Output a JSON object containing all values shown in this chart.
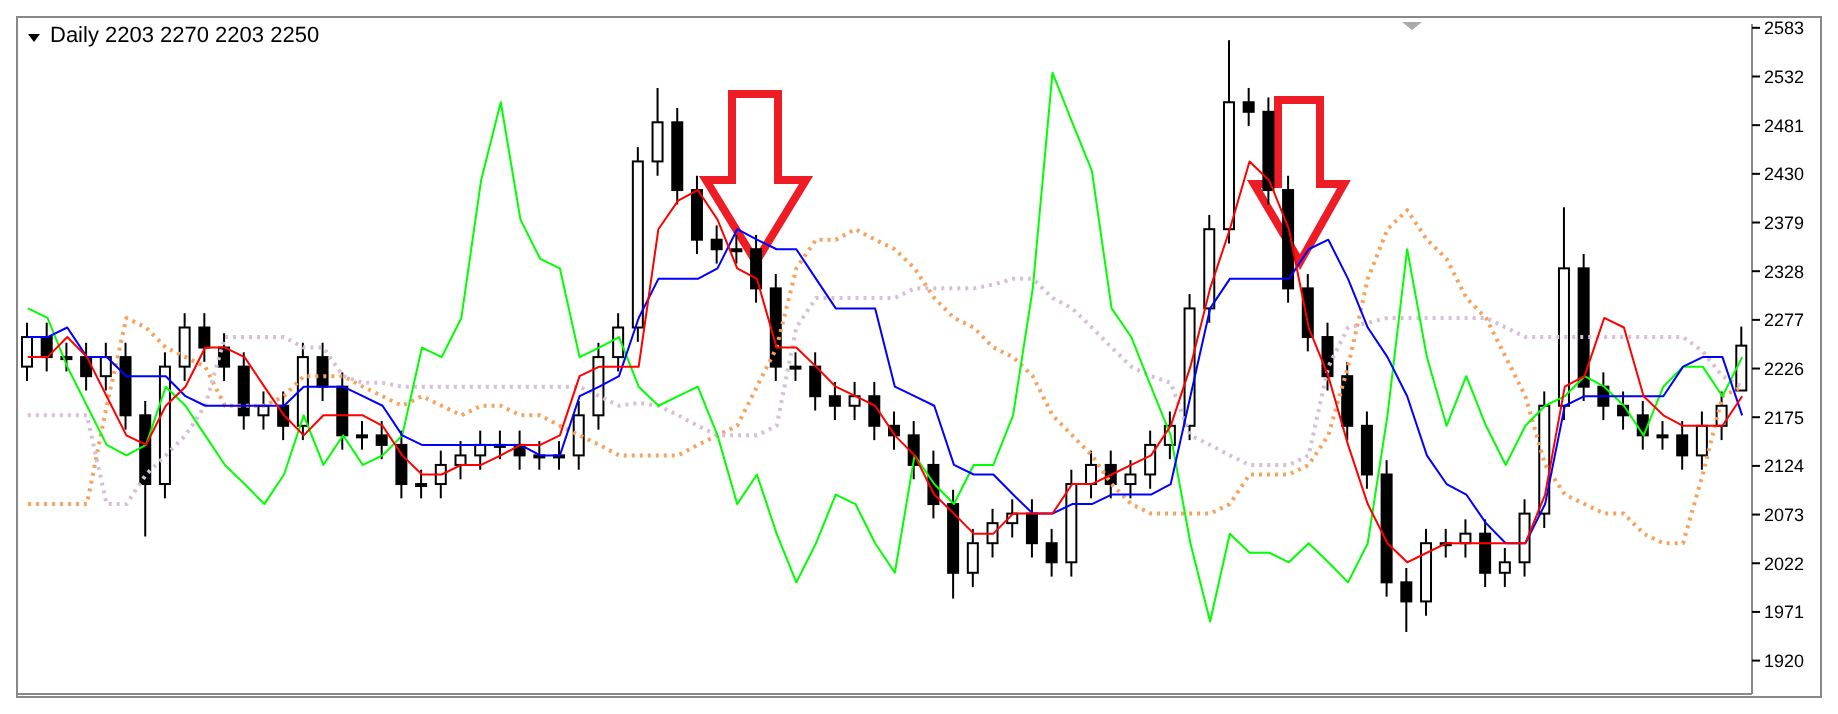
{
  "chart_data": {
    "type": "candlestick",
    "title": "Daily 2203 2270 2203 2250",
    "categories": [
      null,
      null,
      null,
      null,
      null,
      null,
      null,
      null,
      null,
      null,
      null,
      null,
      null,
      null,
      null,
      null,
      null,
      null,
      null,
      null,
      null,
      null,
      null,
      null,
      null,
      null,
      null,
      null,
      null,
      null,
      null,
      null,
      null,
      null,
      null,
      null,
      null,
      null,
      null,
      null,
      null,
      null,
      null,
      null,
      null,
      null,
      null,
      null,
      null,
      null,
      null,
      null,
      null,
      null,
      null,
      null,
      null,
      null,
      null,
      null,
      null,
      null,
      null,
      null,
      null,
      null,
      null,
      null,
      null,
      null,
      null,
      null,
      null,
      null,
      null,
      null,
      null,
      null,
      null,
      null,
      null,
      null,
      null,
      null,
      null,
      null,
      null,
      null
    ],
    "ohlc": [
      [
        2228,
        2274,
        2213,
        2259
      ],
      [
        2259,
        2274,
        2223,
        2238
      ],
      [
        2238,
        2253,
        2223,
        2238
      ],
      [
        2238,
        2253,
        2203,
        2218
      ],
      [
        2218,
        2253,
        2203,
        2238
      ],
      [
        2238,
        2253,
        2162,
        2177
      ],
      [
        2177,
        2192,
        2050,
        2105
      ],
      [
        2105,
        2243,
        2090,
        2228
      ],
      [
        2228,
        2284,
        2213,
        2269
      ],
      [
        2269,
        2284,
        2233,
        2248
      ],
      [
        2248,
        2263,
        2213,
        2228
      ],
      [
        2228,
        2243,
        2162,
        2177
      ],
      [
        2177,
        2202,
        2162,
        2187
      ],
      [
        2187,
        2202,
        2151,
        2166
      ],
      [
        2166,
        2253,
        2151,
        2238
      ],
      [
        2238,
        2253,
        2192,
        2207
      ],
      [
        2207,
        2222,
        2141,
        2156
      ],
      [
        2156,
        2171,
        2141,
        2156
      ],
      [
        2156,
        2171,
        2131,
        2146
      ],
      [
        2146,
        2161,
        2090,
        2105
      ],
      [
        2105,
        2120,
        2090,
        2105
      ],
      [
        2105,
        2140,
        2090,
        2125
      ],
      [
        2125,
        2150,
        2110,
        2135
      ],
      [
        2135,
        2161,
        2120,
        2146
      ],
      [
        2146,
        2161,
        2131,
        2146
      ],
      [
        2146,
        2161,
        2120,
        2135
      ],
      [
        2135,
        2150,
        2120,
        2135
      ],
      [
        2135,
        2150,
        2120,
        2135
      ],
      [
        2135,
        2192,
        2120,
        2177
      ],
      [
        2177,
        2253,
        2162,
        2238
      ],
      [
        2238,
        2284,
        2223,
        2269
      ],
      [
        2269,
        2458,
        2254,
        2443
      ],
      [
        2443,
        2520,
        2428,
        2484
      ],
      [
        2484,
        2499,
        2398,
        2413
      ],
      [
        2413,
        2428,
        2346,
        2361
      ],
      [
        2361,
        2376,
        2336,
        2351
      ],
      [
        2351,
        2366,
        2336,
        2351
      ],
      [
        2351,
        2366,
        2295,
        2310
      ],
      [
        2310,
        2325,
        2213,
        2228
      ],
      [
        2228,
        2243,
        2213,
        2228
      ],
      [
        2228,
        2243,
        2182,
        2197
      ],
      [
        2197,
        2212,
        2172,
        2187
      ],
      [
        2187,
        2212,
        2172,
        2197
      ],
      [
        2197,
        2212,
        2151,
        2166
      ],
      [
        2166,
        2181,
        2141,
        2156
      ],
      [
        2156,
        2171,
        2110,
        2125
      ],
      [
        2125,
        2140,
        2069,
        2084
      ],
      [
        2084,
        2099,
        1985,
        2012
      ],
      [
        2012,
        2058,
        1997,
        2043
      ],
      [
        2043,
        2079,
        2028,
        2064
      ],
      [
        2064,
        2089,
        2049,
        2074
      ],
      [
        2074,
        2089,
        2028,
        2043
      ],
      [
        2043,
        2058,
        2008,
        2023
      ],
      [
        2023,
        2120,
        2008,
        2105
      ],
      [
        2105,
        2140,
        2090,
        2125
      ],
      [
        2125,
        2140,
        2090,
        2105
      ],
      [
        2105,
        2130,
        2090,
        2115
      ],
      [
        2115,
        2161,
        2100,
        2146
      ],
      [
        2146,
        2181,
        2131,
        2166
      ],
      [
        2166,
        2304,
        2151,
        2289
      ],
      [
        2289,
        2387,
        2274,
        2372
      ],
      [
        2372,
        2570,
        2357,
        2505
      ],
      [
        2505,
        2520,
        2480,
        2495
      ],
      [
        2495,
        2510,
        2398,
        2413
      ],
      [
        2413,
        2428,
        2295,
        2310
      ],
      [
        2310,
        2325,
        2244,
        2259
      ],
      [
        2259,
        2274,
        2203,
        2218
      ],
      [
        2218,
        2233,
        2151,
        2166
      ],
      [
        2166,
        2181,
        2100,
        2115
      ],
      [
        2115,
        2130,
        1987,
        2002
      ],
      [
        2002,
        2017,
        1950,
        1982
      ],
      [
        1982,
        2058,
        1967,
        2043
      ],
      [
        2043,
        2058,
        2028,
        2043
      ],
      [
        2043,
        2068,
        2028,
        2053
      ],
      [
        2053,
        2068,
        1997,
        2012
      ],
      [
        2012,
        2038,
        1997,
        2023
      ],
      [
        2023,
        2089,
        2008,
        2074
      ],
      [
        2074,
        2202,
        2059,
        2187
      ],
      [
        2187,
        2395,
        2172,
        2331
      ],
      [
        2331,
        2346,
        2192,
        2207
      ],
      [
        2207,
        2222,
        2172,
        2187
      ],
      [
        2187,
        2202,
        2162,
        2177
      ],
      [
        2177,
        2192,
        2141,
        2156
      ],
      [
        2156,
        2171,
        2141,
        2156
      ],
      [
        2156,
        2171,
        2120,
        2135
      ],
      [
        2135,
        2181,
        2120,
        2166
      ],
      [
        2166,
        2202,
        2151,
        2187
      ],
      [
        2203,
        2270,
        2203,
        2250
      ]
    ],
    "color": "#000000",
    "series": [
      {
        "type": "line",
        "color": "#f4a460",
        "line_style": "dotted",
        "values": [
          2084,
          2084,
          2084,
          2084,
          2187,
          2279,
          2269,
          2248,
          2238,
          2228,
          2187,
          2187,
          2187,
          2197,
          2218,
          2218,
          2218,
          2207,
          2197,
          2187,
          2197,
          2187,
          2177,
          2187,
          2187,
          2177,
          2177,
          2166,
          2156,
          2146,
          2135,
          2135,
          2135,
          2135,
          2146,
          2156,
          2166,
          2207,
          2248,
          2331,
          2361,
          2361,
          2372,
          2361,
          2351,
          2331,
          2300,
          2279,
          2269,
          2248,
          2238,
          2218,
          2177,
          2156,
          2135,
          2105,
          2084,
          2074,
          2074,
          2074,
          2074,
          2084,
          2115,
          2115,
          2115,
          2125,
          2156,
          2228,
          2320,
          2372,
          2392,
          2361,
          2341,
          2300,
          2279,
          2238,
          2197,
          2125,
          2094,
          2084,
          2074,
          2074,
          2053,
          2043,
          2043,
          2115,
          2197,
          2207
        ]
      },
      {
        "type": "line",
        "color": "#d8bfd8",
        "line_style": "dotted",
        "values": [
          2177,
          2177,
          2177,
          2177,
          2084,
          2084,
          2115,
          2135,
          2156,
          2187,
          2259,
          2259,
          2259,
          2259,
          2248,
          2248,
          2218,
          2211,
          2211,
          2207,
          2207,
          2207,
          2207,
          2207,
          2207,
          2207,
          2207,
          2207,
          2207,
          2197,
          2187,
          2190,
          2187,
          2177,
          2166,
          2156,
          2156,
          2156,
          2166,
          2269,
          2300,
          2300,
          2300,
          2300,
          2300,
          2310,
          2310,
          2310,
          2310,
          2314,
          2320,
          2320,
          2300,
          2289,
          2269,
          2248,
          2228,
          2218,
          2211,
          2156,
          2146,
          2135,
          2125,
          2125,
          2125,
          2135,
          2228,
          2269,
          2274,
          2279,
          2279,
          2279,
          2279,
          2279,
          2279,
          2269,
          2259,
          2259,
          2259,
          2259,
          2259,
          2259,
          2259,
          2259,
          2259,
          2244,
          2218,
          2207
        ]
      },
      {
        "type": "line",
        "color": "#00ff00",
        "line_style": "solid",
        "values": [
          2289,
          2279,
          2228,
          2187,
          2146,
          2135,
          2146,
          2207,
          2187,
          2156,
          2125,
          2105,
          2084,
          2115,
          2177,
          2125,
          2156,
          2125,
          2135,
          2156,
          2248,
          2238,
          2279,
          2423,
          2505,
          2382,
          2341,
          2331,
          2238,
          2248,
          2259,
          2207,
          2187,
          2197,
          2207,
          2156,
          2084,
          2115,
          2053,
          2002,
          2043,
          2094,
          2084,
          2043,
          2012,
          2135,
          2105,
          2084,
          2125,
          2125,
          2177,
          2310,
          2536,
          2484,
          2433,
          2289,
          2259,
          2207,
          2156,
          2043,
          1961,
          2053,
          2033,
          2033,
          2023,
          2043,
          2023,
          2002,
          2043,
          2177,
          2351,
          2238,
          2166,
          2218,
          2166,
          2125,
          2166,
          2187,
          2197,
          2218,
          2207,
          2187,
          2156,
          2207,
          2228,
          2228,
          2197,
          2238
        ]
      },
      {
        "type": "line",
        "color": "#0000ff",
        "line_style": "solid",
        "values": [
          2259,
          2259,
          2269,
          2238,
          2238,
          2218,
          2218,
          2218,
          2197,
          2187,
          2187,
          2187,
          2187,
          2187,
          2207,
          2207,
          2207,
          2197,
          2187,
          2156,
          2146,
          2146,
          2146,
          2146,
          2146,
          2146,
          2135,
          2135,
          2197,
          2207,
          2218,
          2279,
          2320,
          2320,
          2320,
          2331,
          2372,
          2361,
          2351,
          2351,
          2320,
          2289,
          2289,
          2289,
          2207,
          2197,
          2187,
          2125,
          2115,
          2115,
          2094,
          2074,
          2074,
          2084,
          2084,
          2094,
          2094,
          2094,
          2105,
          2197,
          2289,
          2320,
          2320,
          2320,
          2320,
          2351,
          2361,
          2320,
          2269,
          2238,
          2197,
          2135,
          2105,
          2094,
          2064,
          2043,
          2043,
          2084,
          2187,
          2197,
          2197,
          2197,
          2197,
          2197,
          2228,
          2238,
          2238,
          2177
        ]
      },
      {
        "type": "line",
        "color": "#ff0000",
        "line_style": "solid",
        "values": [
          2238,
          2238,
          2259,
          2238,
          2197,
          2156,
          2146,
          2187,
          2207,
          2248,
          2248,
          2238,
          2207,
          2177,
          2156,
          2177,
          2177,
          2177,
          2166,
          2135,
          2115,
          2115,
          2125,
          2125,
          2135,
          2146,
          2146,
          2156,
          2218,
          2228,
          2228,
          2228,
          2372,
          2402,
          2413,
          2382,
          2331,
          2320,
          2248,
          2248,
          2228,
          2207,
          2197,
          2187,
          2156,
          2135,
          2094,
          2074,
          2053,
          2053,
          2074,
          2074,
          2074,
          2105,
          2105,
          2115,
          2125,
          2135,
          2166,
          2228,
          2310,
          2372,
          2443,
          2423,
          2372,
          2269,
          2218,
          2146,
          2084,
          2043,
          2023,
          2033,
          2043,
          2043,
          2043,
          2043,
          2043,
          2094,
          2207,
          2218,
          2279,
          2269,
          2197,
          2177,
          2166,
          2166,
          2166,
          2197
        ]
      }
    ],
    "ylim": [
      1885,
      2587
    ],
    "yticks": [
      1920,
      1971,
      2022,
      2073,
      2124,
      2175,
      2226,
      2277,
      2328,
      2379,
      2430,
      2481,
      2532,
      2583
    ],
    "marker": "none"
  }
}
